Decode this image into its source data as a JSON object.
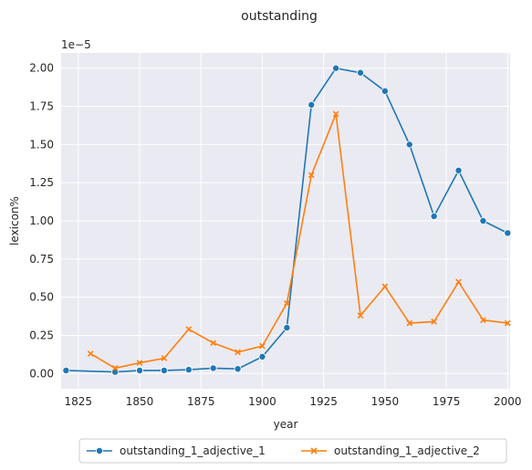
{
  "chart_data": {
    "type": "line",
    "title": "outstanding",
    "xlabel": "year",
    "ylabel": "lexicon%",
    "y_scale_label": "1e−5",
    "xlim": [
      1818,
      2001
    ],
    "ylim": [
      -0.1,
      2.1
    ],
    "x_ticks": [
      1825,
      1850,
      1875,
      1900,
      1925,
      1950,
      1975,
      2000
    ],
    "y_ticks": [
      0.0,
      0.25,
      0.5,
      0.75,
      1.0,
      1.25,
      1.5,
      1.75,
      2.0
    ],
    "y_tick_labels": [
      "0.00",
      "0.25",
      "0.50",
      "0.75",
      "1.00",
      "1.25",
      "1.50",
      "1.75",
      "2.00"
    ],
    "grid": true,
    "legend_position": "bottom-center",
    "background": "#eaeaf2",
    "series": [
      {
        "name": "outstanding_1_adjective_1",
        "color": "#1f77b4",
        "marker": "circle",
        "x": [
          1820,
          1840,
          1850,
          1860,
          1870,
          1880,
          1890,
          1900,
          1910,
          1920,
          1930,
          1940,
          1950,
          1960,
          1970,
          1980,
          1990,
          2000
        ],
        "y": [
          0.02,
          0.01,
          0.02,
          0.02,
          0.025,
          0.035,
          0.03,
          0.11,
          0.3,
          1.76,
          2.0,
          1.97,
          1.85,
          1.5,
          1.03,
          1.33,
          1.0,
          0.92
        ]
      },
      {
        "name": "outstanding_1_adjective_2",
        "color": "#ff7f0e",
        "marker": "x",
        "x": [
          1830,
          1840,
          1850,
          1860,
          1870,
          1880,
          1890,
          1900,
          1910,
          1920,
          1930,
          1940,
          1950,
          1960,
          1970,
          1980,
          1990,
          2000
        ],
        "y": [
          0.13,
          0.035,
          0.07,
          0.1,
          0.29,
          0.2,
          0.14,
          0.18,
          0.46,
          1.3,
          1.7,
          0.38,
          0.57,
          0.33,
          0.34,
          0.6,
          0.35,
          0.33
        ]
      }
    ]
  }
}
